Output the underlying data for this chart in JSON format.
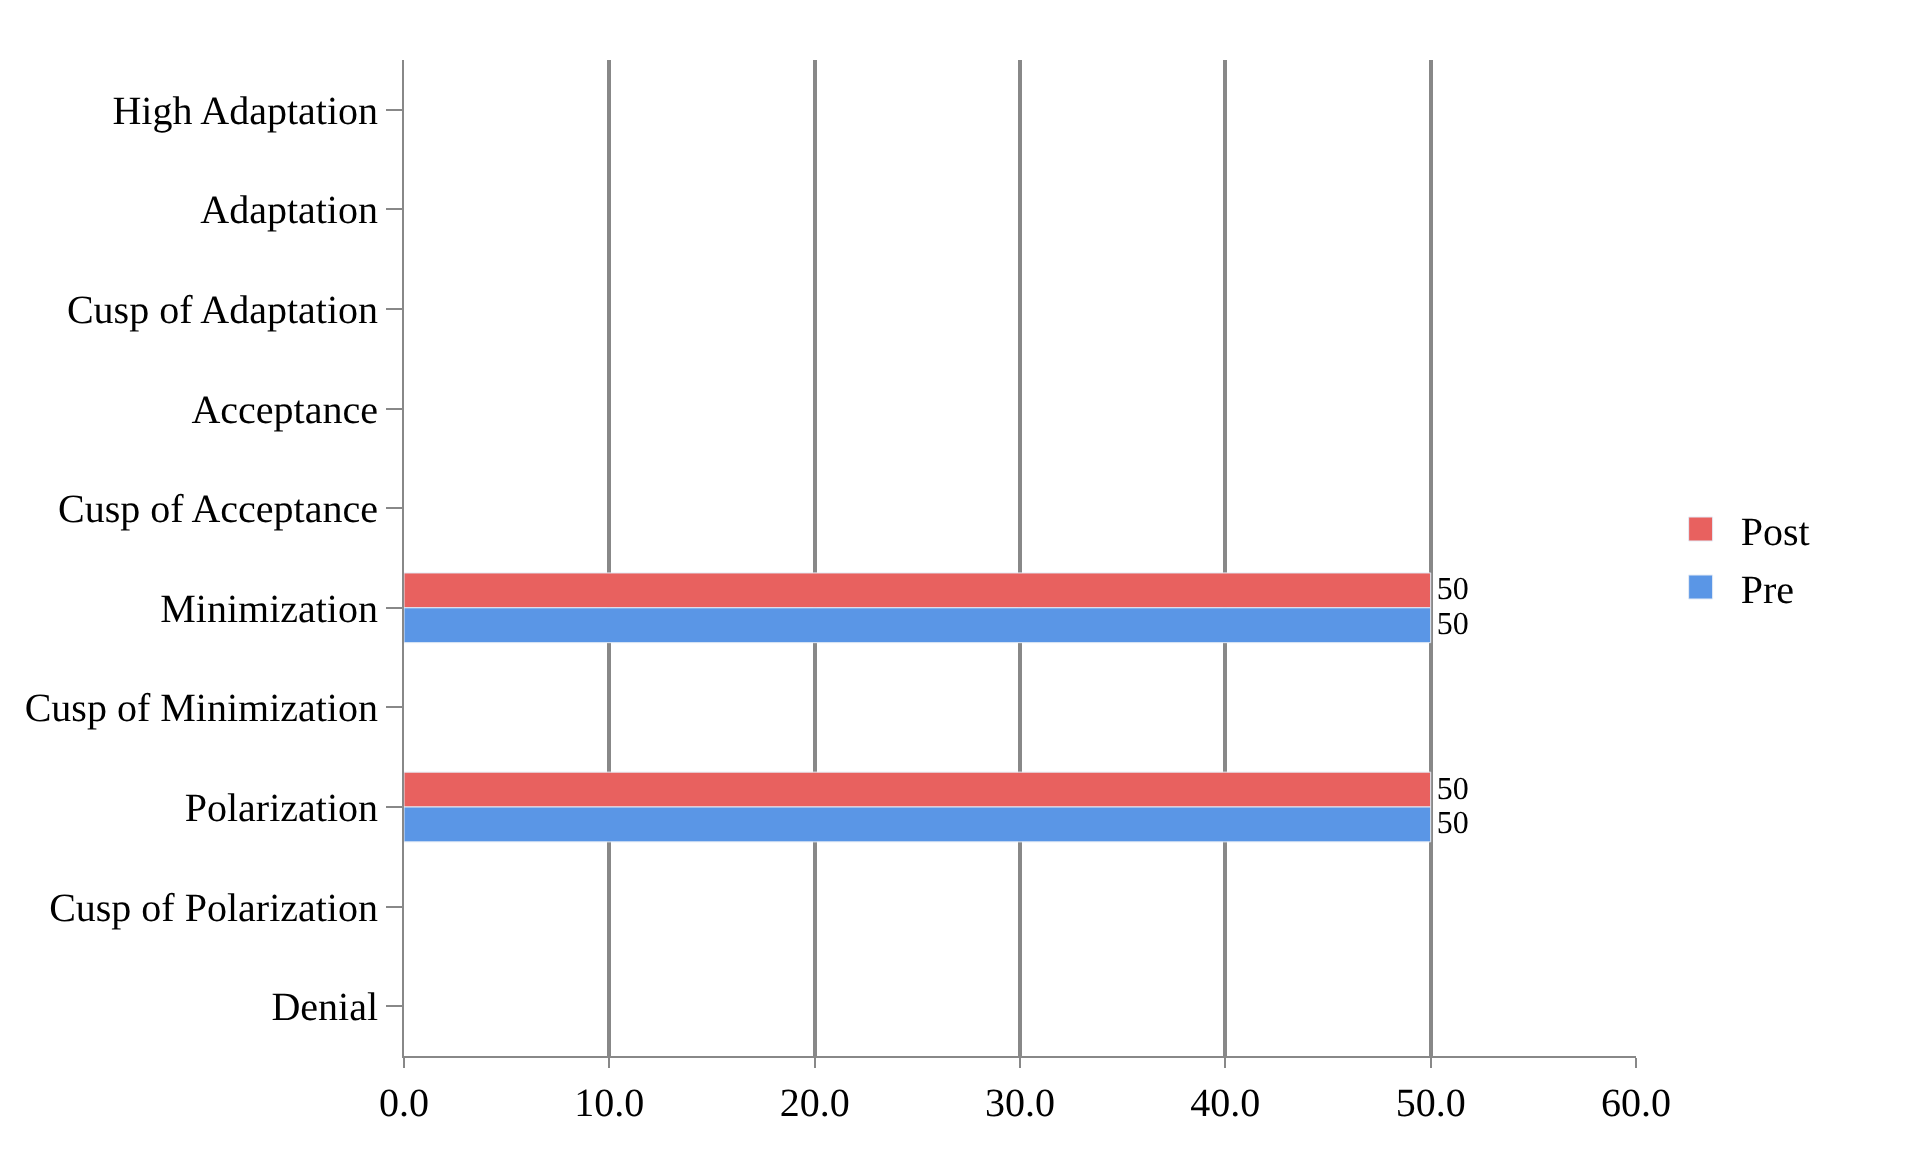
{
  "chart_data": {
    "type": "bar",
    "orientation": "horizontal",
    "categories": [
      "High Adaptation",
      "Adaptation",
      "Cusp of Adaptation",
      "Acceptance",
      "Cusp of Acceptance",
      "Minimization",
      "Cusp of Minimization",
      "Polarization",
      "Cusp of Polarization",
      "Denial"
    ],
    "series": [
      {
        "name": "Post",
        "color": "#e8615f",
        "values": [
          null,
          null,
          null,
          null,
          null,
          50,
          null,
          50,
          null,
          null
        ]
      },
      {
        "name": "Pre",
        "color": "#5a96e6",
        "values": [
          null,
          null,
          null,
          null,
          null,
          50,
          null,
          50,
          null,
          null
        ]
      }
    ],
    "xlim": [
      0,
      60
    ],
    "xticks": [
      {
        "value": 0,
        "label": "0.0"
      },
      {
        "value": 10,
        "label": "10.0"
      },
      {
        "value": 20,
        "label": "20.0"
      },
      {
        "value": 30,
        "label": "30.0"
      },
      {
        "value": 40,
        "label": "40.0"
      },
      {
        "value": 50,
        "label": "50.0"
      },
      {
        "value": 60,
        "label": "60.0"
      }
    ],
    "grid": "x",
    "legend": "right",
    "data_labels": true
  }
}
